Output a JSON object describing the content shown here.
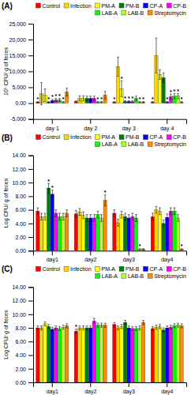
{
  "chart_data": [
    {
      "type": "bar",
      "title": "(A)",
      "ylabel": "10⁵ CFU/ g of feces",
      "categories": [
        "day 1",
        "day 2",
        "day 3",
        "day 4"
      ],
      "ylim": [
        -5,
        25
      ],
      "yticks": [
        {
          "value": -5,
          "label": "-5,000"
        },
        {
          "value": 0.0,
          "label": "0.00"
        },
        {
          "value": 5.0,
          "label": "5,000"
        },
        {
          "value": 10.0,
          "label": "10,000"
        },
        {
          "value": 15.0,
          "label": "15,000"
        },
        {
          "value": 20.0,
          "label": "20,000"
        },
        {
          "value": 25.0,
          "label": "25,000"
        }
      ],
      "grid": false,
      "legend": "upper right",
      "series": [
        {
          "name": "Control",
          "color": "#FF0000",
          "values": [
            0.3,
            0.5,
            0.3,
            0.3
          ],
          "errors": [
            0.2,
            0.2,
            0.2,
            0.2
          ],
          "annotations": [
            "*",
            null,
            "*",
            "*"
          ]
        },
        {
          "name": "Infection",
          "color": "#FFD700",
          "values": [
            3.0,
            1.5,
            11.5,
            15.0
          ],
          "errors": [
            3.5,
            0.8,
            3.0,
            5.5
          ]
        },
        {
          "name": "PM-A",
          "color": "#FFFF00",
          "values": [
            2.5,
            1.5,
            4.5,
            9.0
          ],
          "errors": [
            2.0,
            0.8,
            2.5,
            1.5
          ],
          "annotations": [
            null,
            null,
            "*",
            null
          ]
        },
        {
          "name": "PM-B",
          "color": "#008000",
          "values": [
            0.3,
            1.5,
            0.5,
            8.0
          ],
          "errors": [
            0.2,
            0.7,
            0.3,
            1.5
          ],
          "annotations": [
            "*",
            null,
            "*",
            null
          ]
        },
        {
          "name": "CP-A",
          "color": "#0000FF",
          "values": [
            0.8,
            1.5,
            0.5,
            0.3
          ],
          "errors": [
            0.4,
            0.7,
            0.3,
            0.2
          ],
          "annotations": [
            "*",
            null,
            "*",
            "*"
          ]
        },
        {
          "name": "CP-B",
          "color": "#FF00FF",
          "values": [
            1.0,
            1.5,
            0.5,
            2.0
          ],
          "errors": [
            0.5,
            0.7,
            0.3,
            0.8
          ],
          "annotations": [
            "*",
            null,
            "*",
            "*"
          ]
        },
        {
          "name": "LAB-A",
          "color": "#00FF00",
          "values": [
            1.0,
            0.3,
            1.5,
            2.2
          ],
          "errors": [
            0.5,
            0.2,
            0.7,
            0.8
          ],
          "annotations": [
            "*",
            "*",
            null,
            "*"
          ]
        },
        {
          "name": "LAB-B",
          "color": "#ADFF2F",
          "values": [
            0.3,
            0.3,
            0.3,
            2.2
          ],
          "errors": [
            0.2,
            0.2,
            0.2,
            0.8
          ],
          "annotations": [
            "*",
            "*",
            "*",
            "*"
          ]
        },
        {
          "name": "Streptomycin",
          "color": "#FF8C00",
          "values": [
            3.5,
            2.5,
            0.3,
            0.3
          ],
          "errors": [
            1.2,
            1.2,
            0.2,
            0.2
          ],
          "annotations": [
            null,
            null,
            "*",
            "*"
          ]
        }
      ]
    },
    {
      "type": "bar",
      "title": "(B)",
      "ylabel": "Log CFU/ g of feces",
      "categories": [
        "day1",
        "day2",
        "day3",
        "day4"
      ],
      "ylim": [
        0,
        14.0
      ],
      "yticks": [
        {
          "value": 0,
          "label": "0.00"
        },
        {
          "value": 2.0,
          "label": "2.00"
        },
        {
          "value": 4.0,
          "label": "4.00"
        },
        {
          "value": 6.0,
          "label": "6.00"
        },
        {
          "value": 8.0,
          "label": "8.00"
        },
        {
          "value": 10.0,
          "label": "10.00"
        },
        {
          "value": 12.0,
          "label": "12.00"
        },
        {
          "value": 14.0,
          "label": "14.00"
        }
      ],
      "grid": false,
      "legend": "upper right",
      "series": [
        {
          "name": "Control",
          "color": "#FF0000",
          "values": [
            5.8,
            5.4,
            5.5,
            5.0
          ],
          "errors": [
            0.5,
            0.5,
            0.5,
            0.5
          ]
        },
        {
          "name": "Infection",
          "color": "#FFD700",
          "values": [
            5.0,
            5.7,
            4.1,
            6.0
          ],
          "errors": [
            0.5,
            0.5,
            0.5,
            0.5
          ]
        },
        {
          "name": "PM-A",
          "color": "#FFFF00",
          "values": [
            5.0,
            5.2,
            5.3,
            5.8
          ],
          "errors": [
            0.5,
            0.5,
            0.5,
            0.5
          ]
        },
        {
          "name": "PM-B",
          "color": "#008000",
          "values": [
            9.2,
            4.8,
            5.0,
            4.0
          ],
          "errors": [
            0.7,
            0.5,
            0.5,
            0.5
          ],
          "annotations": [
            "*",
            null,
            null,
            null
          ]
        },
        {
          "name": "CP-A",
          "color": "#0000FF",
          "values": [
            8.3,
            4.8,
            4.8,
            4.9
          ],
          "errors": [
            0.6,
            0.5,
            0.5,
            0.5
          ],
          "annotations": [
            "*",
            null,
            null,
            null
          ]
        },
        {
          "name": "CP-B",
          "color": "#FF00FF",
          "values": [
            5.5,
            4.8,
            5.0,
            5.8
          ],
          "errors": [
            0.5,
            0.5,
            0.5,
            0.5
          ]
        },
        {
          "name": "LAB-A",
          "color": "#00FF00",
          "values": [
            5.0,
            5.3,
            4.8,
            5.8
          ],
          "errors": [
            0.5,
            0.5,
            0.5,
            0.5
          ]
        },
        {
          "name": "LAB-B",
          "color": "#ADFF2F",
          "values": [
            5.0,
            4.8,
            0.2,
            4.8
          ],
          "errors": [
            0.5,
            0.5,
            0.1,
            0.5
          ],
          "annotations": [
            null,
            null,
            "*",
            null
          ]
        },
        {
          "name": "Streptomycin",
          "color": "#FF8C00",
          "values": [
            5.5,
            7.4,
            0.2,
            0.2
          ],
          "errors": [
            0.5,
            0.8,
            0.1,
            0.1
          ],
          "annotations": [
            null,
            "*",
            null,
            "*"
          ]
        }
      ]
    },
    {
      "type": "bar",
      "title": "(C)",
      "ylabel": "Log CFU/ g of feces",
      "categories": [
        "day1",
        "day2",
        "day3",
        "day4"
      ],
      "ylim": [
        0,
        14.0
      ],
      "yticks": [
        {
          "value": 0,
          "label": "0.00"
        },
        {
          "value": 2.0,
          "label": "2.00"
        },
        {
          "value": 4.0,
          "label": "4.00"
        },
        {
          "value": 6.0,
          "label": "6.00"
        },
        {
          "value": 8.0,
          "label": "8.00"
        },
        {
          "value": 10.0,
          "label": "10.00"
        },
        {
          "value": 12.0,
          "label": "12.00"
        },
        {
          "value": 14.0,
          "label": "14.00"
        }
      ],
      "grid": false,
      "legend": "upper right",
      "series": [
        {
          "name": "Control",
          "color": "#FF0000",
          "values": [
            8.0,
            7.5,
            8.5,
            7.9
          ],
          "errors": [
            0.3,
            0.3,
            0.3,
            0.3
          ],
          "annotations": [
            null,
            "*",
            null,
            null
          ]
        },
        {
          "name": "Infection",
          "color": "#FFD700",
          "values": [
            8.0,
            8.0,
            8.0,
            8.1
          ],
          "errors": [
            0.3,
            0.3,
            0.3,
            0.3
          ]
        },
        {
          "name": "PM-A",
          "color": "#FFFF00",
          "values": [
            8.6,
            8.0,
            8.2,
            8.2
          ],
          "errors": [
            0.3,
            0.3,
            0.3,
            0.3
          ]
        },
        {
          "name": "PM-B",
          "color": "#008000",
          "values": [
            8.2,
            8.0,
            8.8,
            7.7
          ],
          "errors": [
            0.3,
            0.3,
            0.3,
            0.3
          ]
        },
        {
          "name": "CP-A",
          "color": "#0000FF",
          "values": [
            7.8,
            8.0,
            8.0,
            8.0
          ],
          "errors": [
            0.3,
            0.3,
            0.3,
            0.3
          ]
        },
        {
          "name": "CP-B",
          "color": "#FF00FF",
          "values": [
            8.0,
            9.0,
            7.9,
            8.1
          ],
          "errors": [
            0.3,
            0.4,
            0.3,
            0.3
          ]
        },
        {
          "name": "LAB-A",
          "color": "#00FF00",
          "values": [
            7.9,
            8.4,
            7.9,
            8.3
          ],
          "errors": [
            0.3,
            0.3,
            0.3,
            0.3
          ]
        },
        {
          "name": "LAB-B",
          "color": "#ADFF2F",
          "values": [
            8.1,
            8.4,
            8.0,
            8.4
          ],
          "errors": [
            0.3,
            0.3,
            0.3,
            0.3
          ]
        },
        {
          "name": "Streptomycin",
          "color": "#FF8C00",
          "values": [
            8.3,
            8.4,
            8.8,
            8.3
          ],
          "errors": [
            0.3,
            0.3,
            0.3,
            0.3
          ]
        }
      ]
    }
  ]
}
